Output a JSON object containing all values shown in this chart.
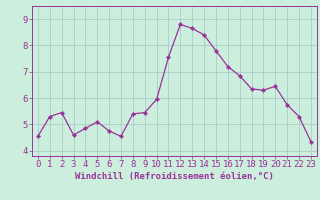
{
  "x": [
    0,
    1,
    2,
    3,
    4,
    5,
    6,
    7,
    8,
    9,
    10,
    11,
    12,
    13,
    14,
    15,
    16,
    17,
    18,
    19,
    20,
    21,
    22,
    23
  ],
  "y": [
    4.55,
    5.3,
    5.45,
    4.6,
    4.85,
    5.1,
    4.75,
    4.55,
    5.4,
    5.45,
    5.95,
    7.55,
    8.8,
    8.65,
    8.4,
    7.8,
    7.2,
    6.85,
    6.35,
    6.3,
    6.45,
    5.75,
    5.3,
    4.35
  ],
  "line_color": "#993399",
  "marker": "D",
  "marker_size": 2.2,
  "bg_color": "#cceedd",
  "grid_color": "#aacccc",
  "axis_label": "Windchill (Refroidissement éolien,°C)",
  "ylim": [
    3.8,
    9.5
  ],
  "xlim": [
    -0.5,
    23.5
  ],
  "xticks": [
    0,
    1,
    2,
    3,
    4,
    5,
    6,
    7,
    8,
    9,
    10,
    11,
    12,
    13,
    14,
    15,
    16,
    17,
    18,
    19,
    20,
    21,
    22,
    23
  ],
  "yticks": [
    4,
    5,
    6,
    7,
    8,
    9
  ],
  "tick_color": "#993399",
  "label_color": "#993399",
  "label_fontsize": 6.5,
  "tick_fontsize": 6.5
}
